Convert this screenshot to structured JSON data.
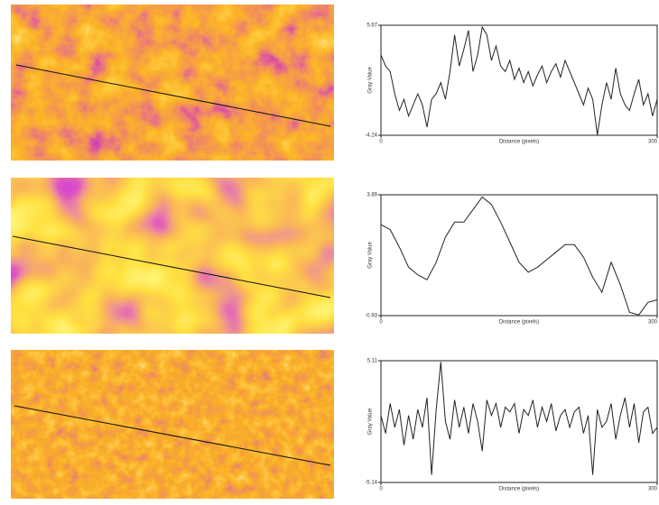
{
  "chart_data": [
    {
      "type": "line",
      "xlabel": "Distance (pixels)",
      "ylabel": "Gray Value",
      "xlim": [
        0,
        300
      ],
      "xticks": [
        0,
        300
      ],
      "ylim": [
        -4.24,
        5.67
      ],
      "yticks": [
        -4.24,
        5.67
      ],
      "x": [
        0,
        5,
        10,
        15,
        20,
        25,
        30,
        35,
        40,
        45,
        50,
        55,
        60,
        65,
        70,
        75,
        80,
        85,
        90,
        95,
        100,
        105,
        110,
        115,
        120,
        125,
        130,
        135,
        140,
        145,
        150,
        155,
        160,
        165,
        170,
        175,
        180,
        185,
        190,
        195,
        200,
        205,
        210,
        215,
        220,
        225,
        230,
        235,
        240,
        245,
        250,
        255,
        260,
        265,
        270,
        275,
        280,
        285,
        290,
        295,
        300
      ],
      "series": [
        {
          "color": "#222222",
          "values": [
            3.0,
            2.0,
            1.5,
            -0.5,
            -2.0,
            -1.0,
            -2.5,
            -1.5,
            -0.5,
            -1.5,
            -3.5,
            -1.0,
            -0.5,
            0.5,
            -1.0,
            1.5,
            4.8,
            2.0,
            3.5,
            5.2,
            1.5,
            3.0,
            5.5,
            4.8,
            2.5,
            3.8,
            2.0,
            1.5,
            2.5,
            0.8,
            1.8,
            0.5,
            1.5,
            0.2,
            1.2,
            2.0,
            0.5,
            1.5,
            2.2,
            1.0,
            2.5,
            1.5,
            0.5,
            -0.5,
            -1.5,
            0.0,
            -1.0,
            -4.2,
            -1.5,
            0.5,
            -1.0,
            1.8,
            -0.5,
            -1.5,
            -2.0,
            -0.5,
            0.8,
            -1.5,
            -0.5,
            -2.5,
            -1.0
          ]
        }
      ]
    },
    {
      "type": "line",
      "xlabel": "Distance (pixels)",
      "ylabel": "Gray Value",
      "xlim": [
        0,
        300
      ],
      "xticks": [
        0,
        300
      ],
      "ylim": [
        -0.93,
        3.89
      ],
      "yticks": [
        -0.93,
        3.89
      ],
      "x": [
        0,
        10,
        20,
        30,
        40,
        50,
        60,
        70,
        80,
        90,
        100,
        110,
        120,
        130,
        140,
        150,
        160,
        170,
        180,
        190,
        200,
        210,
        220,
        230,
        240,
        250,
        260,
        270,
        280,
        290,
        300
      ],
      "series": [
        {
          "color": "#222222",
          "values": [
            2.7,
            2.5,
            1.8,
            1.0,
            0.7,
            0.5,
            1.2,
            2.2,
            2.8,
            2.8,
            3.3,
            3.8,
            3.5,
            2.8,
            2.0,
            1.2,
            0.8,
            1.0,
            1.3,
            1.6,
            1.9,
            1.9,
            1.4,
            0.6,
            0.0,
            1.2,
            0.3,
            -0.8,
            -0.9,
            -0.4,
            -0.3
          ]
        }
      ]
    },
    {
      "type": "line",
      "xlabel": "Distance (pixels)",
      "ylabel": "Gray Value",
      "xlim": [
        0,
        300
      ],
      "xticks": [
        0,
        300
      ],
      "ylim": [
        -5.14,
        5.11
      ],
      "yticks": [
        -5.14,
        5.11
      ],
      "x": [
        0,
        5,
        10,
        15,
        20,
        25,
        30,
        35,
        40,
        45,
        50,
        55,
        60,
        65,
        70,
        75,
        80,
        85,
        90,
        95,
        100,
        105,
        110,
        115,
        120,
        125,
        130,
        135,
        140,
        145,
        150,
        155,
        160,
        165,
        170,
        175,
        180,
        185,
        190,
        195,
        200,
        205,
        210,
        215,
        220,
        225,
        230,
        235,
        240,
        245,
        250,
        255,
        260,
        265,
        270,
        275,
        280,
        285,
        290,
        295,
        300
      ],
      "series": [
        {
          "color": "#222222",
          "values": [
            0.5,
            -1.0,
            1.5,
            -0.5,
            1.0,
            -2.0,
            0.5,
            -1.5,
            1.0,
            -0.5,
            2.0,
            -4.5,
            1.0,
            5.0,
            0.0,
            -1.5,
            1.8,
            -0.5,
            1.2,
            -1.0,
            1.5,
            0.0,
            -2.5,
            1.8,
            0.5,
            1.5,
            -0.5,
            1.2,
            0.8,
            1.5,
            -1.0,
            1.0,
            0.5,
            1.8,
            -0.5,
            1.2,
            0.0,
            1.5,
            -0.8,
            0.5,
            1.0,
            -0.5,
            0.8,
            1.2,
            -1.0,
            0.5,
            -4.5,
            1.0,
            -0.5,
            0.0,
            1.5,
            -1.5,
            0.5,
            2.0,
            -0.5,
            1.5,
            -1.8,
            0.8,
            1.2,
            -1.0,
            -0.5
          ]
        }
      ]
    }
  ]
}
